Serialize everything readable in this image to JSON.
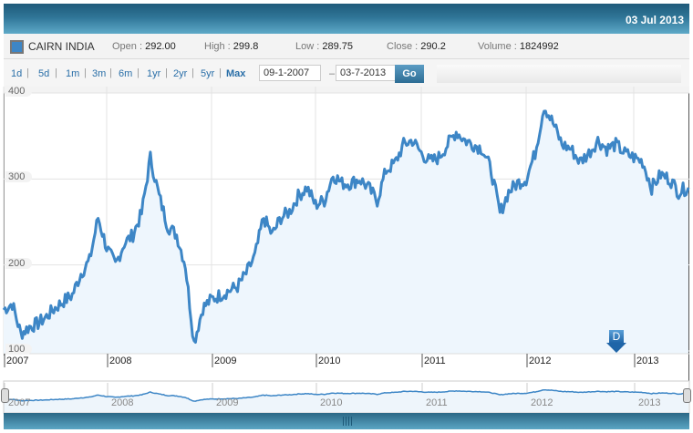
{
  "header": {
    "date": "03 Jul 2013"
  },
  "stock": {
    "name": "CAIRN INDIA",
    "color": "#3d86c6",
    "open_label": "Open : ",
    "open": "292.00",
    "high_label": "High : ",
    "high": "299.8",
    "low_label": "Low : ",
    "low": "289.75",
    "close_label": "Close : ",
    "close": "290.2",
    "volume_label": "Volume : ",
    "volume": "1824992"
  },
  "range": {
    "buttons": [
      "1d",
      "5d",
      "1m",
      "3m",
      "6m",
      "1yr",
      "2yr",
      "5yr",
      "Max"
    ],
    "from": "09-1-2007",
    "to": "03-7-2013",
    "go": "Go",
    "dash": "–"
  },
  "flag": {
    "label": "D"
  },
  "chart_data": {
    "type": "area",
    "title": "CAIRN INDIA",
    "xlabel": "",
    "ylabel": "",
    "ylim": [
      100,
      400
    ],
    "yticks": [
      100,
      200,
      300,
      400
    ],
    "xticks": [
      "2007",
      "2008",
      "2009",
      "2010",
      "2011",
      "2012",
      "2013"
    ],
    "grid": true,
    "line_color": "#3d86c6",
    "fill_color": "#eef6fd",
    "x": [
      "2007-01",
      "2007-02",
      "2007-03",
      "2007-04",
      "2007-05",
      "2007-06",
      "2007-07",
      "2007-08",
      "2007-09",
      "2007-10",
      "2007-11",
      "2007-12",
      "2008-01",
      "2008-02",
      "2008-03",
      "2008-04",
      "2008-05",
      "2008-06",
      "2008-07",
      "2008-08",
      "2008-09",
      "2008-10",
      "2008-11",
      "2008-12",
      "2009-01",
      "2009-02",
      "2009-03",
      "2009-04",
      "2009-05",
      "2009-06",
      "2009-07",
      "2009-08",
      "2009-09",
      "2009-10",
      "2009-11",
      "2009-12",
      "2010-01",
      "2010-02",
      "2010-03",
      "2010-04",
      "2010-05",
      "2010-06",
      "2010-07",
      "2010-08",
      "2010-09",
      "2010-10",
      "2010-11",
      "2010-12",
      "2011-01",
      "2011-02",
      "2011-03",
      "2011-04",
      "2011-05",
      "2011-06",
      "2011-07",
      "2011-08",
      "2011-09",
      "2011-10",
      "2011-11",
      "2011-12",
      "2012-01",
      "2012-02",
      "2012-03",
      "2012-04",
      "2012-05",
      "2012-06",
      "2012-07",
      "2012-08",
      "2012-09",
      "2012-10",
      "2012-11",
      "2012-12",
      "2013-01",
      "2013-02",
      "2013-03",
      "2013-04",
      "2013-05",
      "2013-06",
      "2013-07"
    ],
    "series": [
      {
        "name": "CAIRN INDIA",
        "values": [
          148,
          155,
          120,
          128,
          132,
          140,
          150,
          158,
          165,
          190,
          205,
          255,
          220,
          200,
          225,
          235,
          260,
          325,
          280,
          245,
          235,
          200,
          110,
          150,
          160,
          165,
          170,
          175,
          190,
          210,
          255,
          235,
          255,
          262,
          280,
          290,
          270,
          275,
          305,
          295,
          295,
          300,
          290,
          275,
          310,
          318,
          340,
          345,
          330,
          320,
          325,
          340,
          355,
          345,
          340,
          335,
          310,
          260,
          285,
          295,
          300,
          330,
          385,
          365,
          340,
          335,
          320,
          330,
          345,
          335,
          340,
          330,
          325,
          320,
          290,
          305,
          300,
          285,
          290
        ]
      }
    ],
    "navigator": {
      "xticks": [
        "2007",
        "2008",
        "2009",
        "2010",
        "2011",
        "2012",
        "2013"
      ]
    }
  }
}
